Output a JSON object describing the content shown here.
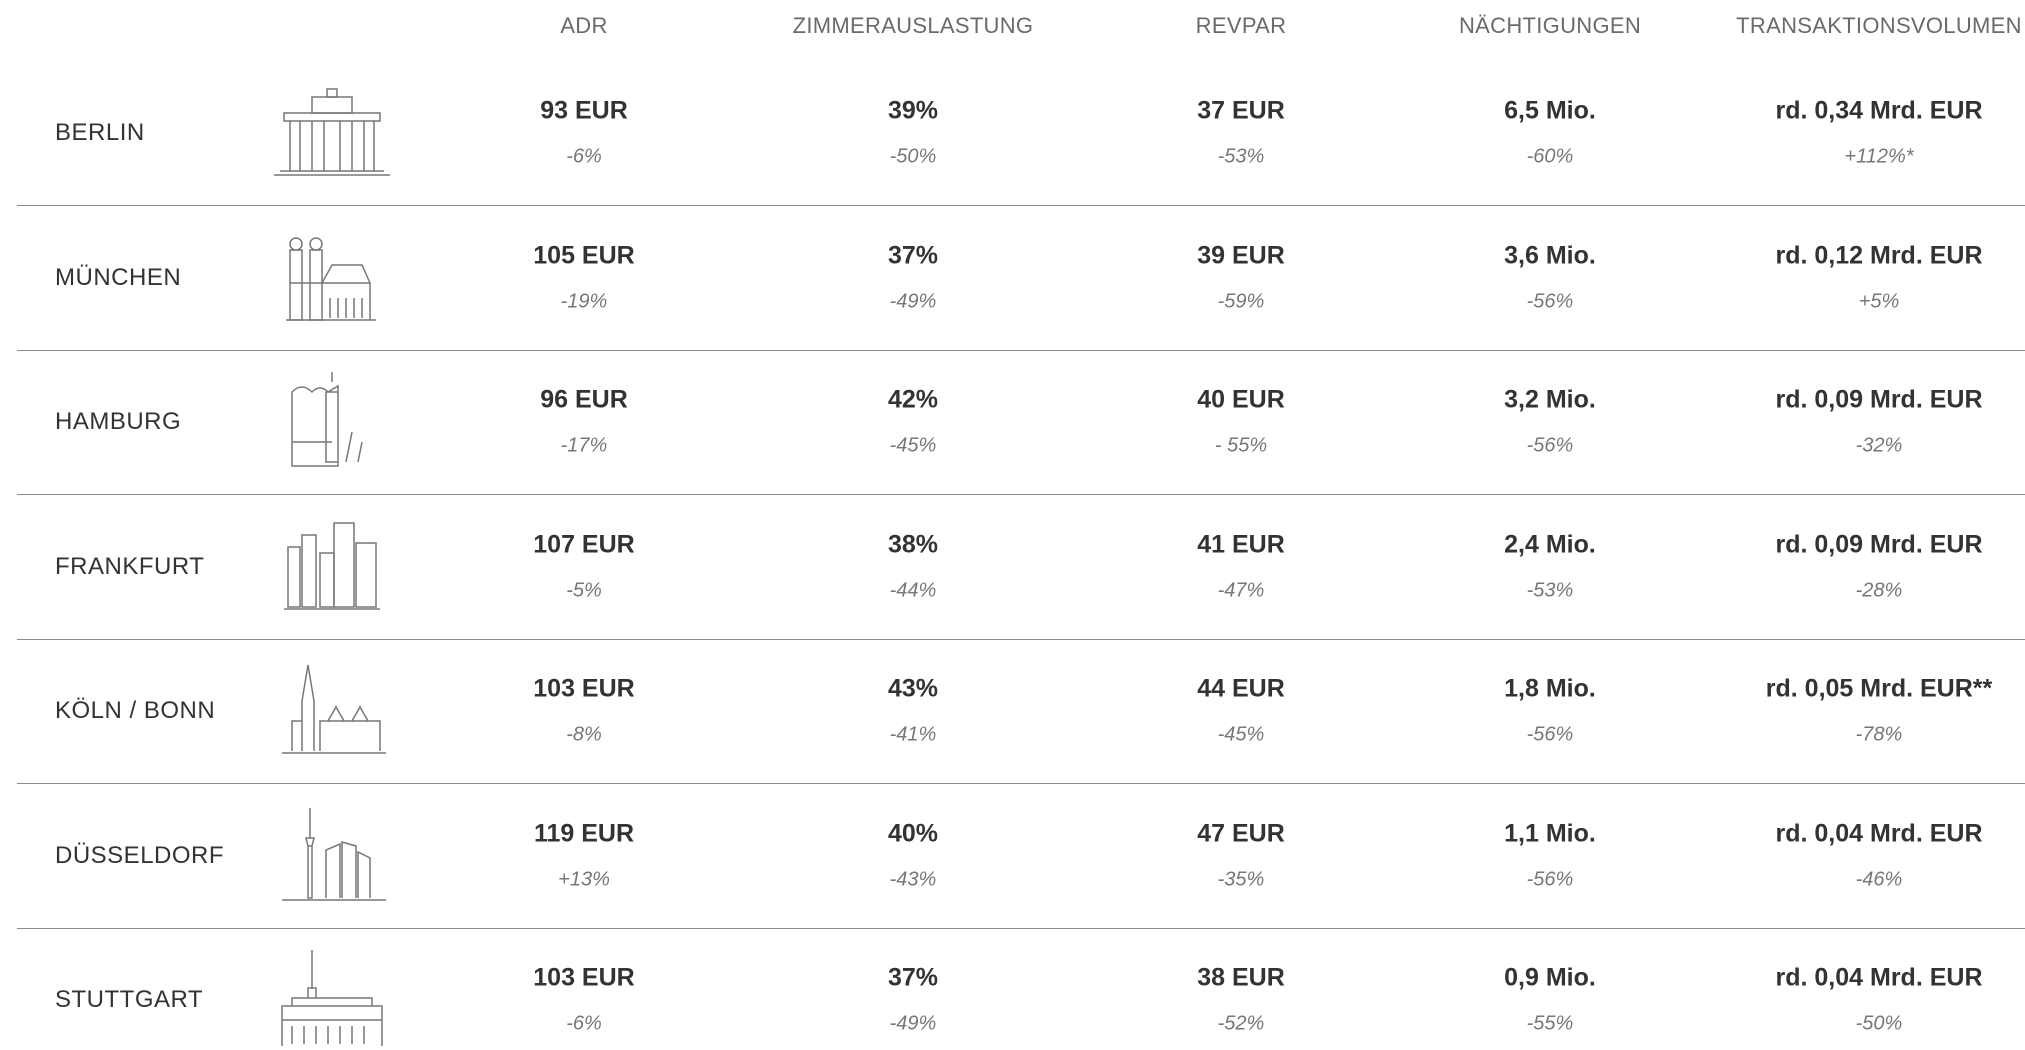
{
  "table": {
    "columns": [
      "ADR",
      "ZIMMERAUSLASTUNG",
      "REVPAR",
      "NÄCHTIGUNGEN",
      "TRANSAKTIONSVOLUMEN"
    ],
    "rows": [
      {
        "city": "BERLIN",
        "cells": [
          {
            "value": "93 EUR",
            "change": "-6%"
          },
          {
            "value": "39%",
            "change": "-50%"
          },
          {
            "value": "37 EUR",
            "change": "-53%"
          },
          {
            "value": "6,5 Mio.",
            "change": "-60%"
          },
          {
            "value": "rd. 0,34 Mrd. EUR",
            "change": "+112%*"
          }
        ]
      },
      {
        "city": "MÜNCHEN",
        "cells": [
          {
            "value": "105 EUR",
            "change": "-19%"
          },
          {
            "value": "37%",
            "change": "-49%"
          },
          {
            "value": "39 EUR",
            "change": "-59%"
          },
          {
            "value": "3,6 Mio.",
            "change": "-56%"
          },
          {
            "value": "rd. 0,12 Mrd. EUR",
            "change": "+5%"
          }
        ]
      },
      {
        "city": "HAMBURG",
        "cells": [
          {
            "value": "96 EUR",
            "change": "-17%"
          },
          {
            "value": "42%",
            "change": "-45%"
          },
          {
            "value": "40 EUR",
            "change": "- 55%"
          },
          {
            "value": "3,2 Mio.",
            "change": "-56%"
          },
          {
            "value": "rd. 0,09 Mrd. EUR",
            "change": "-32%"
          }
        ]
      },
      {
        "city": "FRANKFURT",
        "cells": [
          {
            "value": "107 EUR",
            "change": "-5%"
          },
          {
            "value": "38%",
            "change": "-44%"
          },
          {
            "value": "41 EUR",
            "change": "-47%"
          },
          {
            "value": "2,4 Mio.",
            "change": "-53%"
          },
          {
            "value": "rd. 0,09 Mrd. EUR",
            "change": "-28%"
          }
        ]
      },
      {
        "city": "KÖLN / BONN",
        "cells": [
          {
            "value": "103 EUR",
            "change": "-8%"
          },
          {
            "value": "43%",
            "change": "-41%"
          },
          {
            "value": "44 EUR",
            "change": "-45%"
          },
          {
            "value": "1,8 Mio.",
            "change": "-56%"
          },
          {
            "value": "rd. 0,05 Mrd. EUR**",
            "change": "-78%"
          }
        ]
      },
      {
        "city": "DÜSSELDORF",
        "cells": [
          {
            "value": "119 EUR",
            "change": "+13%"
          },
          {
            "value": "40%",
            "change": "-43%"
          },
          {
            "value": "47 EUR",
            "change": "-35%"
          },
          {
            "value": "1,1 Mio.",
            "change": "-56%"
          },
          {
            "value": "rd. 0,04 Mrd. EUR",
            "change": "-46%"
          }
        ]
      },
      {
        "city": "STUTTGART",
        "cells": [
          {
            "value": "103 EUR",
            "change": "-6%"
          },
          {
            "value": "37%",
            "change": "-49%"
          },
          {
            "value": "38 EUR",
            "change": "-52%"
          },
          {
            "value": "0,9 Mio.",
            "change": "-55%"
          },
          {
            "value": "rd. 0,04 Mrd. EUR",
            "change": "-50%"
          }
        ]
      }
    ]
  }
}
